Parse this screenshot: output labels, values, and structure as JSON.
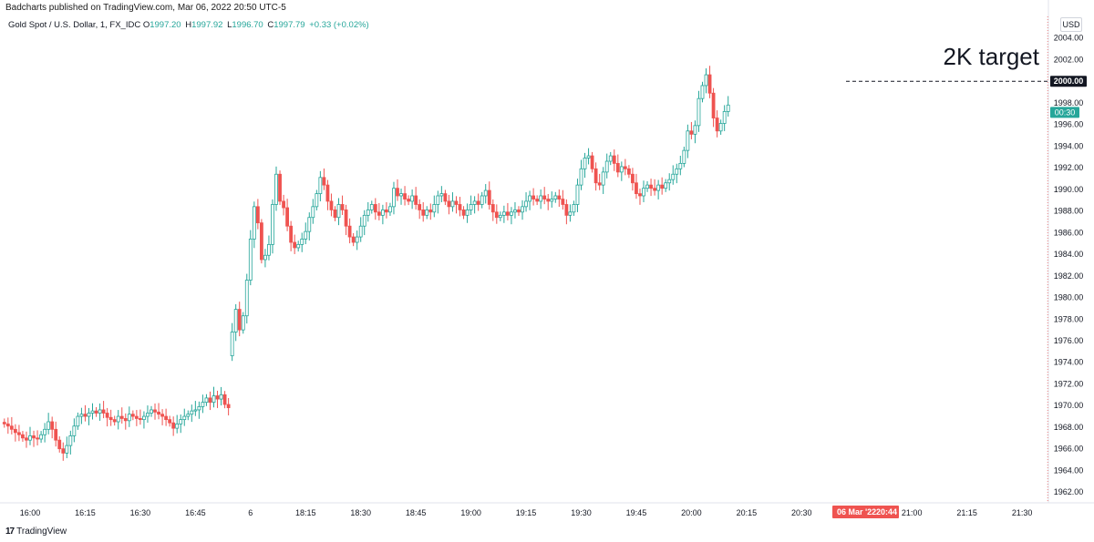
{
  "header": {
    "published": "Badcharts published on TradingView.com, Mar 06, 2022 20:50 UTC-5"
  },
  "symbol": {
    "name": "Gold Spot / U.S. Dollar, 1, FX_IDC",
    "o_label": "O",
    "o_value": "1997.20",
    "h_label": "H",
    "h_value": "1997.92",
    "l_label": "L",
    "l_value": "1996.70",
    "c_label": "C",
    "c_value": "1997.79",
    "change": "+0.33 (+0.02%)"
  },
  "currency": "USD",
  "annotation": {
    "text": "2K target",
    "level": 2000
  },
  "price_tags": {
    "level_label": "2000.00",
    "countdown": "00:30",
    "countdown_price": 1997.79
  },
  "cursor": {
    "date_label": "06 Mar '22",
    "time_label": "20:44",
    "minute": 284
  },
  "brand": {
    "logo_mark": "17",
    "logo_text": "TradingView"
  },
  "colors": {
    "up": "#26a69a",
    "down": "#ef5350",
    "annotation_line": "#131722",
    "cursor_line": "#ef5350",
    "axis_text": "#131722"
  },
  "chart_data": {
    "type": "candlestick",
    "ylim": [
      1961,
      2006
    ],
    "y_ticks": [
      1962,
      1964,
      1966,
      1968,
      1970,
      1972,
      1974,
      1976,
      1978,
      1980,
      1982,
      1984,
      1986,
      1988,
      1990,
      1992,
      1994,
      1996,
      1998,
      2000,
      2002,
      2004
    ],
    "y_tick_labels": [
      "1962.00",
      "1964.00",
      "1966.00",
      "1968.00",
      "1970.00",
      "1972.00",
      "1974.00",
      "1976.00",
      "1978.00",
      "1980.00",
      "1982.00",
      "1984.00",
      "1986.00",
      "1988.00",
      "1990.00",
      "1992.00",
      "1994.00",
      "1996.00",
      "1998.00",
      "2000.00",
      "2002.00",
      "2004.00"
    ],
    "x_ticks": [
      {
        "label": "16:00",
        "minute": 7
      },
      {
        "label": "16:15",
        "minute": 22
      },
      {
        "label": "16:30",
        "minute": 37
      },
      {
        "label": "16:45",
        "minute": 52
      },
      {
        "label": "6",
        "minute": 67
      },
      {
        "label": "18:15",
        "minute": 82
      },
      {
        "label": "18:30",
        "minute": 97
      },
      {
        "label": "18:45",
        "minute": 112
      },
      {
        "label": "19:00",
        "minute": 127
      },
      {
        "label": "19:15",
        "minute": 142
      },
      {
        "label": "19:30",
        "minute": 157
      },
      {
        "label": "19:45",
        "minute": 172
      },
      {
        "label": "20:00",
        "minute": 187
      },
      {
        "label": "20:15",
        "minute": 202
      },
      {
        "label": "20:30",
        "minute": 217
      },
      {
        "label": "21:00",
        "minute": 247
      },
      {
        "label": "21:15",
        "minute": 262
      },
      {
        "label": "21:30",
        "minute": 277
      }
    ],
    "closes": [
      1968.3,
      1968.1,
      1967.8,
      1967.5,
      1967.3,
      1967.0,
      1966.8,
      1967.2,
      1967.0,
      1966.9,
      1967.3,
      1967.8,
      1968.5,
      1967.8,
      1966.8,
      1966.0,
      1965.6,
      1966.3,
      1967.2,
      1968.1,
      1969.0,
      1969.2,
      1969.0,
      1969.3,
      1969.5,
      1969.3,
      1969.6,
      1969.3,
      1968.9,
      1968.7,
      1968.5,
      1969.0,
      1968.8,
      1968.6,
      1969.2,
      1969.0,
      1968.8,
      1968.7,
      1969.0,
      1969.3,
      1969.6,
      1969.4,
      1969.2,
      1969.0,
      1968.7,
      1968.4,
      1967.9,
      1968.3,
      1968.7,
      1969.0,
      1969.2,
      1969.5,
      1969.6,
      1969.9,
      1970.3,
      1970.7,
      1970.3,
      1970.9,
      1970.6,
      1971.0,
      1970.1,
      1969.8,
      1976.8,
      1978.9,
      1977.0,
      1978.3,
      1981.6,
      1985.4,
      1988.4,
      1986.9,
      1983.5,
      1983.9,
      1984.9,
      1988.6,
      1991.4,
      1988.9,
      1988.3,
      1986.6,
      1985.1,
      1984.6,
      1984.9,
      1985.4,
      1986.1,
      1987.4,
      1988.4,
      1989.6,
      1991.1,
      1990.4,
      1988.9,
      1988.1,
      1987.4,
      1988.6,
      1988.1,
      1986.6,
      1985.6,
      1985.1,
      1985.6,
      1986.6,
      1987.6,
      1988.1,
      1988.6,
      1987.9,
      1987.6,
      1988.1,
      1987.9,
      1988.4,
      1990.1,
      1989.4,
      1989.6,
      1989.1,
      1988.9,
      1989.4,
      1988.6,
      1988.1,
      1987.6,
      1988.1,
      1987.9,
      1988.6,
      1989.4,
      1989.6,
      1988.9,
      1988.4,
      1988.9,
      1988.6,
      1988.1,
      1987.6,
      1988.1,
      1988.6,
      1988.9,
      1988.6,
      1989.4,
      1989.9,
      1988.6,
      1987.9,
      1987.4,
      1987.6,
      1987.9,
      1987.6,
      1987.9,
      1988.1,
      1987.9,
      1988.4,
      1988.9,
      1989.4,
      1989.1,
      1988.9,
      1989.4,
      1989.1,
      1988.9,
      1989.1,
      1989.4,
      1989.1,
      1988.6,
      1987.6,
      1987.9,
      1988.6,
      1990.4,
      1991.9,
      1992.9,
      1993.1,
      1991.9,
      1990.6,
      1990.4,
      1991.6,
      1992.6,
      1993.1,
      1992.4,
      1991.6,
      1992.1,
      1991.9,
      1991.4,
      1990.6,
      1989.6,
      1989.4,
      1990.1,
      1990.4,
      1990.1,
      1989.9,
      1990.4,
      1990.1,
      1990.6,
      1990.9,
      1991.4,
      1991.9,
      1992.4,
      1993.6,
      1995.4,
      1995.1,
      1995.9,
      1998.4,
      1999.6,
      2000.6,
      1998.9,
      1996.6,
      1995.4,
      1996.1,
      1997.2,
      1997.8
    ]
  }
}
